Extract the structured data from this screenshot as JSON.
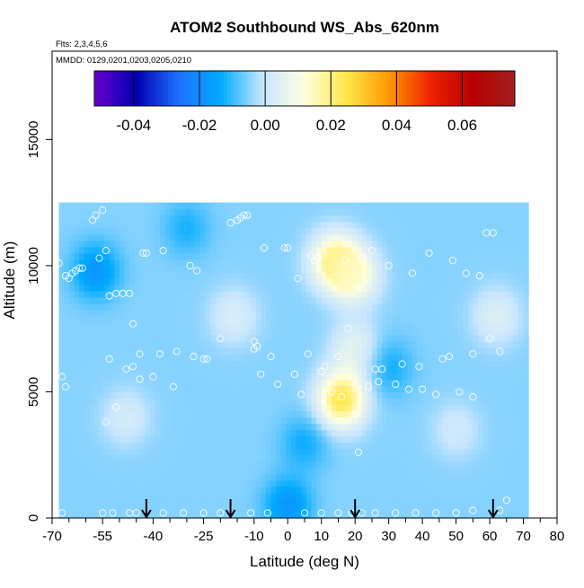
{
  "chart_data": {
    "type": "heatmap",
    "title": "ATOM2 Southbound WS_Abs_620nm",
    "subtitle_lines": [
      "Flts: 2,3,4,5,6",
      "MMDD: 0129,0201,0203,0205,0210"
    ],
    "xlabel": "Latitude (deg N)",
    "ylabel": "Altitude (m)",
    "xlim": [
      -70,
      80
    ],
    "ylim": [
      0,
      18500
    ],
    "x_ticks": [
      -70,
      -55,
      -40,
      -25,
      -10,
      0,
      10,
      20,
      30,
      40,
      50,
      60,
      70,
      80
    ],
    "x_minor_ticks": [
      -65,
      -60,
      -50,
      -45,
      -35,
      -30,
      -20,
      -15,
      -5,
      5,
      15,
      25,
      35,
      45,
      55,
      65,
      75
    ],
    "y_ticks": [
      0,
      5000,
      10000,
      15000
    ],
    "colorbar": {
      "range": [
        -0.052,
        0.076
      ],
      "ticks": [
        -0.04,
        -0.02,
        0.0,
        0.02,
        0.04,
        0.06
      ],
      "tick_labels": [
        "-0.04",
        "-0.02",
        "0.00",
        "0.02",
        "0.04",
        "0.06"
      ],
      "colors": [
        "#6600cc",
        "#0000b0",
        "#1e70ff",
        "#00aaff",
        "#c8e6ff",
        "#ffffe0",
        "#ffe84a",
        "#ff9900",
        "#ee2200",
        "#b80000",
        "#a02020"
      ]
    },
    "field_extent": {
      "lat": [
        -68,
        71
      ],
      "alt": [
        0,
        12500
      ]
    },
    "background_value": -0.005,
    "field_features": [
      {
        "lat": 20,
        "alt": 9600,
        "value": 0.012
      },
      {
        "lat": 14,
        "alt": 10200,
        "value": 0.02
      },
      {
        "lat": 16,
        "alt": 4700,
        "value": 0.025
      },
      {
        "lat": 20,
        "alt": 6700,
        "value": 0.006
      },
      {
        "lat": -57,
        "alt": 9800,
        "value": -0.018
      },
      {
        "lat": -48,
        "alt": 4000,
        "value": 0.002
      },
      {
        "lat": -16,
        "alt": 8000,
        "value": 0.003
      },
      {
        "lat": 50,
        "alt": 3500,
        "value": 0.001
      },
      {
        "lat": 5,
        "alt": 3000,
        "value": -0.013
      },
      {
        "lat": 0,
        "alt": 500,
        "value": -0.018
      },
      {
        "lat": 30,
        "alt": 6000,
        "value": -0.013
      },
      {
        "lat": -30,
        "alt": 11500,
        "value": -0.012
      },
      {
        "lat": 62,
        "alt": 8000,
        "value": 0.004
      }
    ],
    "sample_points": [
      [
        -68,
        10100
      ],
      [
        -67,
        5600
      ],
      [
        -66,
        5200
      ],
      [
        -66,
        9600
      ],
      [
        -65,
        9500
      ],
      [
        -64,
        9700
      ],
      [
        -63,
        9800
      ],
      [
        -62,
        9900
      ],
      [
        -61,
        9900
      ],
      [
        -58,
        11800
      ],
      [
        -57,
        12000
      ],
      [
        -55,
        12200
      ],
      [
        -54,
        10600
      ],
      [
        -56,
        10300
      ],
      [
        -53,
        8800
      ],
      [
        -51,
        8900
      ],
      [
        -49,
        8900
      ],
      [
        -47,
        8900
      ],
      [
        -46,
        7700
      ],
      [
        -46,
        6000
      ],
      [
        -44,
        6500
      ],
      [
        -43,
        10500
      ],
      [
        -42,
        10500
      ],
      [
        -38,
        6500
      ],
      [
        -37,
        10600
      ],
      [
        -33,
        6600
      ],
      [
        -29,
        10000
      ],
      [
        -28,
        6400
      ],
      [
        -27,
        9800
      ],
      [
        -25,
        6300
      ],
      [
        -24,
        6300
      ],
      [
        -20,
        7100
      ],
      [
        -17,
        11700
      ],
      [
        -15,
        11800
      ],
      [
        -14,
        11900
      ],
      [
        -13,
        12000
      ],
      [
        -12,
        12000
      ],
      [
        -10,
        6700
      ],
      [
        -9,
        6800
      ],
      [
        -10,
        7000
      ],
      [
        -8,
        5700
      ],
      [
        -7,
        10700
      ],
      [
        -5,
        6400
      ],
      [
        -3,
        5300
      ],
      [
        -1,
        10700
      ],
      [
        0,
        10700
      ],
      [
        2,
        5700
      ],
      [
        3,
        9500
      ],
      [
        4,
        4900
      ],
      [
        6,
        6500
      ],
      [
        7,
        10400
      ],
      [
        8,
        10200
      ],
      [
        9,
        10300
      ],
      [
        10,
        5800
      ],
      [
        11,
        6000
      ],
      [
        13,
        5000
      ],
      [
        15,
        6400
      ],
      [
        16,
        4800
      ],
      [
        17,
        10200
      ],
      [
        18,
        7500
      ],
      [
        20,
        4100
      ],
      [
        21,
        2600
      ],
      [
        22,
        10300
      ],
      [
        24,
        5200
      ],
      [
        25,
        10600
      ],
      [
        26,
        5900
      ],
      [
        27,
        5400
      ],
      [
        28,
        5900
      ],
      [
        30,
        10000
      ],
      [
        32,
        5300
      ],
      [
        34,
        6100
      ],
      [
        36,
        5100
      ],
      [
        37,
        9700
      ],
      [
        39,
        6000
      ],
      [
        40,
        5100
      ],
      [
        42,
        10500
      ],
      [
        44,
        4900
      ],
      [
        46,
        6300
      ],
      [
        48,
        6400
      ],
      [
        49,
        10200
      ],
      [
        51,
        5000
      ],
      [
        53,
        9700
      ],
      [
        55,
        6500
      ],
      [
        55,
        4800
      ],
      [
        57,
        9600
      ],
      [
        59,
        11300
      ],
      [
        60,
        7100
      ],
      [
        61,
        11300
      ],
      [
        63,
        6600
      ],
      [
        65,
        700
      ],
      [
        -67,
        200
      ],
      [
        -55,
        200
      ],
      [
        -52,
        200
      ],
      [
        -47,
        200
      ],
      [
        -45,
        200
      ],
      [
        -37,
        200
      ],
      [
        -31,
        200
      ],
      [
        -25,
        200
      ],
      [
        -20,
        200
      ],
      [
        -11,
        200
      ],
      [
        -6,
        200
      ],
      [
        5,
        200
      ],
      [
        10,
        200
      ],
      [
        15,
        200
      ],
      [
        19,
        200
      ],
      [
        22,
        200
      ],
      [
        26,
        200
      ],
      [
        32,
        200
      ],
      [
        38,
        200
      ],
      [
        44,
        200
      ],
      [
        50,
        200
      ],
      [
        55,
        300
      ],
      [
        63,
        300
      ],
      [
        -54,
        3800
      ],
      [
        -51,
        4400
      ],
      [
        -44,
        5500
      ],
      [
        -40,
        5600
      ],
      [
        -34,
        5200
      ],
      [
        -48,
        5900
      ],
      [
        -53,
        6300
      ]
    ],
    "arrows_lat": [
      -42,
      -17,
      20,
      61
    ]
  }
}
